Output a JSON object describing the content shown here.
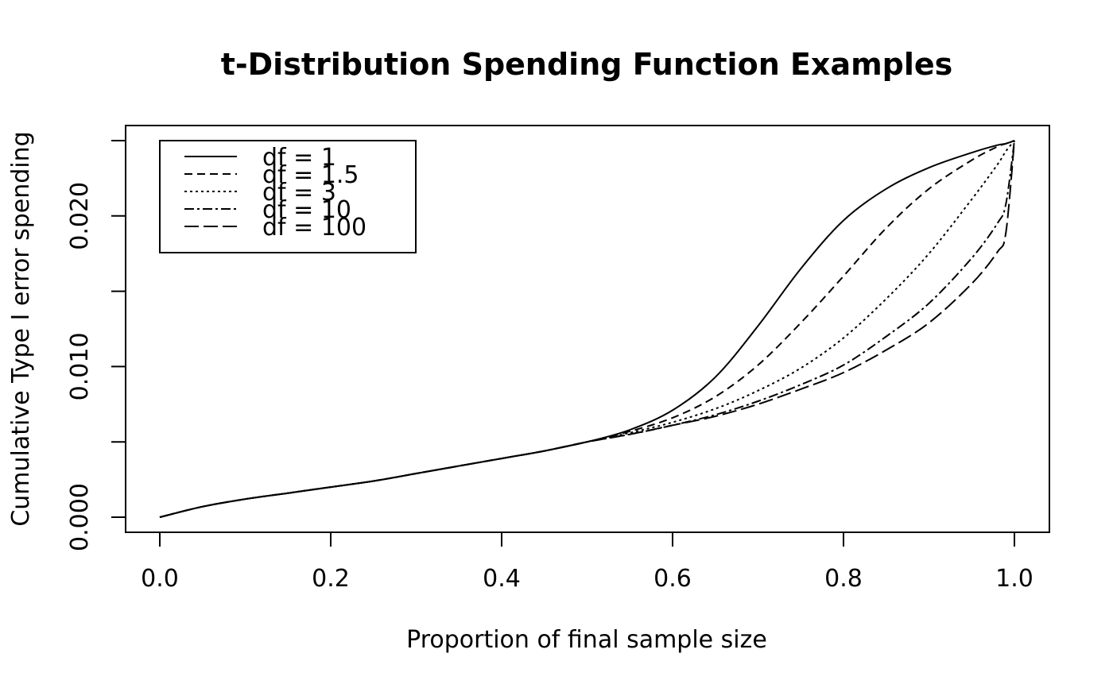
{
  "chart_data": {
    "type": "line",
    "title": "t-Distribution Spending Function Examples",
    "xlabel": "Proportion of final sample size",
    "ylabel": "Cumulative Type I error spending",
    "xlim": [
      0,
      1
    ],
    "ylim": [
      0,
      0.025
    ],
    "x_ticks": [
      0,
      0.2,
      0.4,
      0.6,
      0.8,
      1
    ],
    "x_tick_labels": [
      "0.0",
      "0.2",
      "0.4",
      "0.6",
      "0.8",
      "1.0"
    ],
    "y_ticks": [
      0,
      0.005,
      0.01,
      0.015,
      0.02,
      0.025
    ],
    "y_tick_labels": [
      "0.000",
      "",
      "0.010",
      "",
      "0.020",
      ""
    ],
    "grid": false,
    "legend_position": "top-left",
    "line_color": "#000000",
    "x": [
      0,
      0.05,
      0.1,
      0.15,
      0.2,
      0.25,
      0.3,
      0.35,
      0.4,
      0.45,
      0.5,
      0.55,
      0.6,
      0.65,
      0.7,
      0.75,
      0.8,
      0.85,
      0.9,
      0.95,
      0.98,
      0.99,
      1
    ],
    "series": [
      {
        "name": "df = 1",
        "dash": "solid",
        "values": [
          0,
          0.0007,
          0.0012,
          0.0016,
          0.002,
          0.0024,
          0.0029,
          0.0034,
          0.0039,
          0.0044,
          0.005,
          0.0058,
          0.0071,
          0.0093,
          0.0127,
          0.0165,
          0.0197,
          0.0218,
          0.0232,
          0.0242,
          0.0247,
          0.0248,
          0.025
        ]
      },
      {
        "name": "df = 1.5",
        "dash": "10,6",
        "values": [
          0,
          0.0007,
          0.0012,
          0.0016,
          0.002,
          0.0024,
          0.0029,
          0.0034,
          0.0039,
          0.0044,
          0.005,
          0.0057,
          0.0066,
          0.008,
          0.0101,
          0.0129,
          0.016,
          0.0192,
          0.0218,
          0.0237,
          0.0246,
          0.0248,
          0.025
        ]
      },
      {
        "name": "df = 3",
        "dash": "3,4",
        "values": [
          0,
          0.0007,
          0.0012,
          0.0016,
          0.002,
          0.0024,
          0.0029,
          0.0034,
          0.0039,
          0.0044,
          0.005,
          0.0056,
          0.0063,
          0.0072,
          0.0084,
          0.0099,
          0.0119,
          0.0145,
          0.0175,
          0.0211,
          0.0234,
          0.0243,
          0.025
        ]
      },
      {
        "name": "df = 10",
        "dash": "12,4,3,4",
        "values": [
          0,
          0.0007,
          0.0012,
          0.0016,
          0.002,
          0.0024,
          0.0029,
          0.0034,
          0.0039,
          0.0044,
          0.005,
          0.0055,
          0.0061,
          0.0068,
          0.0077,
          0.0088,
          0.0101,
          0.012,
          0.0142,
          0.0172,
          0.0195,
          0.0208,
          0.025
        ]
      },
      {
        "name": "df = 100",
        "dash": "18,6",
        "values": [
          0,
          0.0007,
          0.0012,
          0.0016,
          0.002,
          0.0024,
          0.0029,
          0.0034,
          0.0039,
          0.0044,
          0.005,
          0.0055,
          0.0061,
          0.0067,
          0.0075,
          0.0085,
          0.0096,
          0.0111,
          0.0129,
          0.0155,
          0.0176,
          0.0189,
          0.025
        ]
      }
    ]
  }
}
